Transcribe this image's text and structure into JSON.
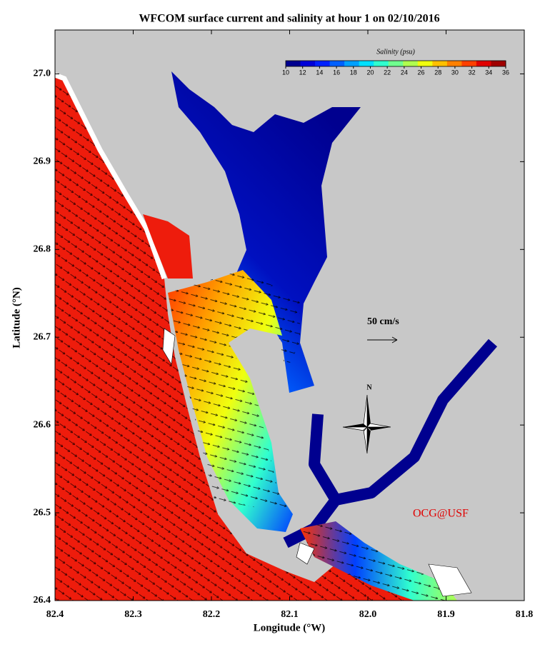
{
  "chart_data": {
    "type": "map",
    "title": "WFCOM surface current and salinity at hour 1 on 02/10/2016",
    "xlabel": "Longitude (°W)",
    "ylabel": "Latitude (°N)",
    "xlim": [
      82.4,
      81.8
    ],
    "ylim": [
      26.4,
      27.05
    ],
    "xticks": [
      82.4,
      82.3,
      82.2,
      82.1,
      {
        "value": 82,
        "label": "82.0"
      },
      81.9,
      81.8
    ],
    "yticks": [
      26.4,
      26.5,
      26.6,
      26.7,
      26.8,
      26.9,
      {
        "value": 27,
        "label": "27.0"
      }
    ],
    "colorbar": {
      "label": "Salinity (psu)",
      "lim": [
        10,
        36
      ],
      "ticks": [
        10,
        12,
        14,
        16,
        18,
        20,
        22,
        24,
        26,
        28,
        30,
        32,
        34,
        36
      ],
      "colors": [
        "#00008f",
        "#0000d8",
        "#0020ff",
        "#0060ff",
        "#00a0ff",
        "#00e0ff",
        "#30ffcf",
        "#70ff8f",
        "#b0ff4f",
        "#f0ff0f",
        "#ffc000",
        "#ff8000",
        "#ff4000",
        "#e00000",
        "#a00000"
      ]
    },
    "scale_label": "50 cm/s",
    "north_label": "N",
    "credit": "OCG@USF"
  }
}
